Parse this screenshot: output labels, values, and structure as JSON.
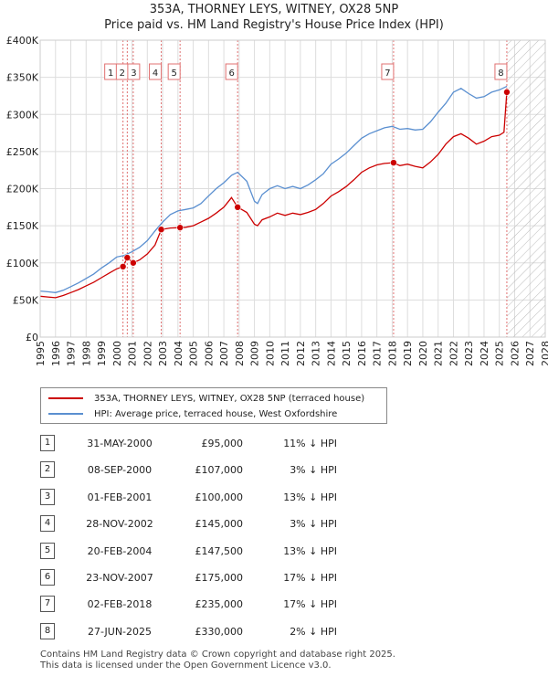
{
  "colors": {
    "price_line": "#cc0000",
    "hpi_line": "#5a8fd0",
    "grid": "#dddddd",
    "vline": "#e07070",
    "hatch": "#bbbbbb"
  },
  "chart_data": {
    "type": "line",
    "title": "353A, THORNEY LEYS, WITNEY, OX28 5NP",
    "subtitle": "Price paid vs. HM Land Registry's House Price Index (HPI)",
    "xlim": [
      1995,
      2028
    ],
    "ylim": [
      0,
      400000
    ],
    "y_ticks": [
      0,
      50000,
      100000,
      150000,
      200000,
      250000,
      300000,
      350000,
      400000
    ],
    "y_tick_labels": [
      "£0",
      "£50K",
      "£100K",
      "£150K",
      "£200K",
      "£250K",
      "£300K",
      "£350K",
      "£400K"
    ],
    "x_ticks": [
      1995,
      1996,
      1997,
      1998,
      1999,
      2000,
      2001,
      2002,
      2003,
      2004,
      2005,
      2006,
      2007,
      2008,
      2009,
      2010,
      2011,
      2012,
      2013,
      2014,
      2015,
      2016,
      2017,
      2018,
      2019,
      2020,
      2021,
      2022,
      2023,
      2024,
      2025,
      2026,
      2027,
      2028
    ],
    "x_tick_labels": [
      "1995",
      "1996",
      "1997",
      "1998",
      "1999",
      "2000",
      "2001",
      "2002",
      "2003",
      "2004",
      "2005",
      "2006",
      "2007",
      "2008",
      "2009",
      "2010",
      "2011",
      "2012",
      "2013",
      "2014",
      "2015",
      "2016",
      "2017",
      "2018",
      "2019",
      "2020",
      "2021",
      "2022",
      "2023",
      "2024",
      "2025",
      "2026",
      "2027",
      "2028"
    ],
    "grid": true,
    "future_hatch_from": 2025.5,
    "series": [
      {
        "name": "353A, THORNEY LEYS, WITNEY, OX28 5NP (terraced house)",
        "x": [
          1995.0,
          1995.5,
          1996.0,
          1996.5,
          1997.0,
          1997.5,
          1998.0,
          1998.5,
          1999.0,
          1999.5,
          2000.0,
          2000.41,
          2000.69,
          2001.08,
          2001.5,
          2002.0,
          2002.5,
          2002.91,
          2003.5,
          2004.14,
          2004.5,
          2005.0,
          2005.5,
          2006.0,
          2006.5,
          2007.0,
          2007.5,
          2007.9,
          2008.5,
          2009.0,
          2009.2,
          2009.5,
          2010.0,
          2010.5,
          2011.0,
          2011.5,
          2012.0,
          2012.5,
          2013.0,
          2013.5,
          2014.0,
          2014.5,
          2015.0,
          2015.5,
          2016.0,
          2016.5,
          2017.0,
          2017.5,
          2018.09,
          2018.5,
          2019.0,
          2019.5,
          2020.0,
          2020.5,
          2021.0,
          2021.5,
          2022.0,
          2022.5,
          2023.0,
          2023.5,
          2024.0,
          2024.5,
          2025.0,
          2025.3,
          2025.49
        ],
        "y": [
          55000,
          54000,
          53000,
          56000,
          60000,
          64000,
          69000,
          74000,
          80000,
          86000,
          92000,
          95000,
          107000,
          100000,
          104000,
          112000,
          124000,
          145000,
          147000,
          147500,
          148000,
          150000,
          155000,
          160000,
          167000,
          175000,
          188000,
          175000,
          168000,
          152000,
          150000,
          158000,
          162000,
          167000,
          164000,
          167000,
          165000,
          168000,
          172000,
          180000,
          190000,
          196000,
          203000,
          212000,
          222000,
          228000,
          232000,
          234000,
          235000,
          231000,
          233000,
          230000,
          228000,
          236000,
          246000,
          260000,
          270000,
          274000,
          268000,
          260000,
          264000,
          270000,
          272000,
          276000,
          330000
        ]
      },
      {
        "name": "HPI: Average price, terraced house, West Oxfordshire",
        "x": [
          1995.0,
          1995.5,
          1996.0,
          1996.5,
          1997.0,
          1997.5,
          1998.0,
          1998.5,
          1999.0,
          1999.5,
          2000.0,
          2000.5,
          2001.0,
          2001.5,
          2002.0,
          2002.5,
          2003.0,
          2003.5,
          2004.0,
          2004.5,
          2005.0,
          2005.5,
          2006.0,
          2006.5,
          2007.0,
          2007.5,
          2007.9,
          2008.5,
          2009.0,
          2009.2,
          2009.5,
          2010.0,
          2010.5,
          2011.0,
          2011.5,
          2012.0,
          2012.5,
          2013.0,
          2013.5,
          2014.0,
          2014.5,
          2015.0,
          2015.5,
          2016.0,
          2016.5,
          2017.0,
          2017.5,
          2018.0,
          2018.5,
          2019.0,
          2019.5,
          2020.0,
          2020.5,
          2021.0,
          2021.5,
          2022.0,
          2022.5,
          2023.0,
          2023.5,
          2024.0,
          2024.5,
          2025.0,
          2025.5
        ],
        "y": [
          62000,
          61000,
          60000,
          63000,
          68000,
          73000,
          79000,
          85000,
          93000,
          100000,
          108000,
          110000,
          115000,
          121000,
          130000,
          143000,
          155000,
          165000,
          170000,
          172000,
          174000,
          180000,
          190000,
          200000,
          208000,
          218000,
          222000,
          210000,
          183000,
          180000,
          192000,
          200000,
          204000,
          200000,
          203000,
          200000,
          205000,
          212000,
          220000,
          233000,
          240000,
          248000,
          258000,
          268000,
          274000,
          278000,
          282000,
          284000,
          280000,
          281000,
          279000,
          280000,
          290000,
          303000,
          315000,
          330000,
          335000,
          328000,
          322000,
          324000,
          330000,
          333000,
          338000
        ]
      }
    ],
    "sale_markers": [
      {
        "id": "1",
        "x": 2000.41,
        "y": 95000
      },
      {
        "id": "2",
        "x": 2000.69,
        "y": 107000
      },
      {
        "id": "3",
        "x": 2001.08,
        "y": 100000
      },
      {
        "id": "4",
        "x": 2002.91,
        "y": 145000
      },
      {
        "id": "5",
        "x": 2004.14,
        "y": 147500
      },
      {
        "id": "6",
        "x": 2007.9,
        "y": 175000
      },
      {
        "id": "7",
        "x": 2018.09,
        "y": 235000
      },
      {
        "id": "8",
        "x": 2025.49,
        "y": 330000
      }
    ]
  },
  "legend": {
    "price_label": "353A, THORNEY LEYS, WITNEY, OX28 5NP (terraced house)",
    "hpi_label": "HPI: Average price, terraced house, West Oxfordshire"
  },
  "transactions": [
    {
      "num": "1",
      "date": "31-MAY-2000",
      "price": "£95,000",
      "hpi": "11% ↓ HPI"
    },
    {
      "num": "2",
      "date": "08-SEP-2000",
      "price": "£107,000",
      "hpi": "3% ↓ HPI"
    },
    {
      "num": "3",
      "date": "01-FEB-2001",
      "price": "£100,000",
      "hpi": "13% ↓ HPI"
    },
    {
      "num": "4",
      "date": "28-NOV-2002",
      "price": "£145,000",
      "hpi": "3% ↓ HPI"
    },
    {
      "num": "5",
      "date": "20-FEB-2004",
      "price": "£147,500",
      "hpi": "13% ↓ HPI"
    },
    {
      "num": "6",
      "date": "23-NOV-2007",
      "price": "£175,000",
      "hpi": "17% ↓ HPI"
    },
    {
      "num": "7",
      "date": "02-FEB-2018",
      "price": "£235,000",
      "hpi": "17% ↓ HPI"
    },
    {
      "num": "8",
      "date": "27-JUN-2025",
      "price": "£330,000",
      "hpi": "2% ↓ HPI"
    }
  ],
  "footer": {
    "line1": "Contains HM Land Registry data © Crown copyright and database right 2025.",
    "line2": "This data is licensed under the Open Government Licence v3.0."
  }
}
